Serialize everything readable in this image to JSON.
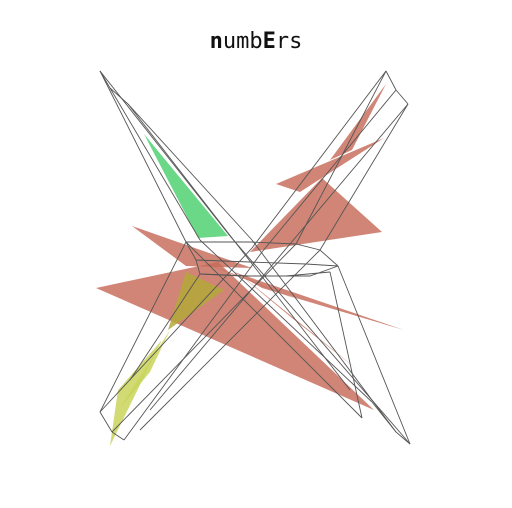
{
  "title": {
    "text": "numbErs",
    "segments": [
      {
        "text": "n",
        "bold": true
      },
      {
        "text": "umb",
        "bold": false
      },
      {
        "text": "E",
        "bold": true
      },
      {
        "text": "r",
        "bold": false
      },
      {
        "text": "s",
        "bold": false
      }
    ]
  },
  "colors": {
    "background": "#ffffff",
    "line": "#555555",
    "red_fill": "#c66a58",
    "green_fill": "#5bd47a",
    "yellow_fill": "#c9d35a",
    "olive_fill": "#b4a83a"
  }
}
